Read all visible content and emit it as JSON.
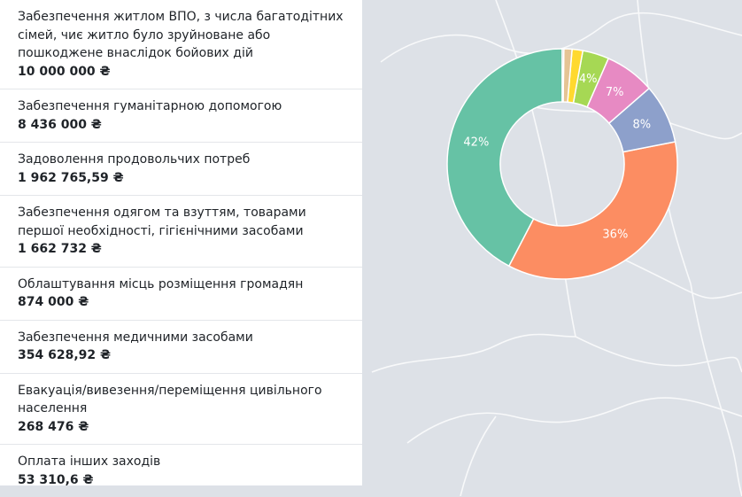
{
  "items": [
    {
      "label": "Забезпечення житлом ВПО, з числа багатодітних сімей, чиє житло було зруйноване або пошкоджене внаслідок бойових дій",
      "value": "10 000 000 ₴"
    },
    {
      "label": "Забезпечення гуманітарною допомогою",
      "value": "8 436 000 ₴"
    },
    {
      "label": "Задоволення продовольчих потреб",
      "value": "1 962 765,59 ₴"
    },
    {
      "label": "Забезпечення одягом та взуттям, товарами першої необхідності, гігієнічними засобами",
      "value": "1 662 732 ₴"
    },
    {
      "label": "Облаштування місць розміщення громадян",
      "value": "874 000 ₴"
    },
    {
      "label": "Забезпечення медичними засобами",
      "value": "354 628,92 ₴"
    },
    {
      "label": "Евакуація/вивезення/переміщення цивільного населення",
      "value": "268 476 ₴"
    },
    {
      "label": "Оплата інших заходів",
      "value": "53 310,6 ₴"
    }
  ],
  "chart_data": {
    "type": "pie",
    "variant": "donut",
    "slices": [
      {
        "ref": "items.0",
        "value": 10000000,
        "percent_label": "42%",
        "color": "#66c2a5"
      },
      {
        "ref": "items.1",
        "value": 8436000,
        "percent_label": "36%",
        "color": "#fc8d62"
      },
      {
        "ref": "items.2",
        "value": 1962765.59,
        "percent_label": "8%",
        "color": "#8da0cb"
      },
      {
        "ref": "items.3",
        "value": 1662732,
        "percent_label": "7%",
        "color": "#e78ac3"
      },
      {
        "ref": "items.4",
        "value": 874000,
        "percent_label": "4%",
        "color": "#a6d854"
      },
      {
        "ref": "items.5",
        "value": 354628.92,
        "percent_label": "",
        "color": "#ffd92f"
      },
      {
        "ref": "items.6",
        "value": 268476,
        "percent_label": "",
        "color": "#e5c494"
      },
      {
        "ref": "items.7",
        "value": 53310.6,
        "percent_label": "",
        "color": "#b3b3b3"
      }
    ],
    "start_angle_deg": 90,
    "direction": "counterclockwise",
    "legend": "none"
  }
}
